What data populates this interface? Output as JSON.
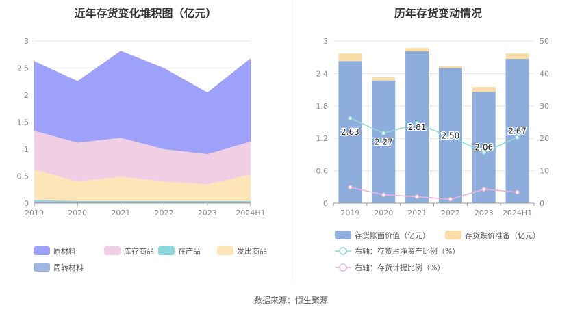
{
  "source": "数据来源：恒生聚源",
  "colors": {
    "raw": "#9ea1f9",
    "wip_store": "#f0cee3",
    "in_prod": "#8cd7db",
    "shipped": "#fde5b8",
    "turnover": "#9eb6e0",
    "bar_book": "#8daddd",
    "bar_prov": "#fcdca7",
    "line_ratio": "#8ed8d8",
    "line_prov": "#e8b4d8"
  },
  "chart_data": [
    {
      "type": "area",
      "stacked": true,
      "title": "近年存货变化堆积图（亿元）",
      "categories": [
        "2019",
        "2020",
        "2021",
        "2022",
        "2023",
        "2024H1"
      ],
      "ylim": [
        0,
        3
      ],
      "yticks": [
        "0",
        "0.5",
        "1",
        "1.5",
        "2",
        "2.5",
        "3"
      ],
      "grid": true,
      "legend_position": "bottom",
      "series": [
        {
          "name": "周转材料",
          "legend_order": 4,
          "color": "#9eb6e0",
          "values": [
            0.03,
            0.02,
            0.02,
            0.02,
            0.02,
            0.02
          ]
        },
        {
          "name": "在产品",
          "legend_order": 2,
          "color": "#8cd7db",
          "values": [
            0.03,
            0.02,
            0.02,
            0.02,
            0.02,
            0.02
          ]
        },
        {
          "name": "发出商品",
          "legend_order": 3,
          "color": "#fde5b8",
          "values": [
            0.56,
            0.36,
            0.45,
            0.36,
            0.31,
            0.49
          ]
        },
        {
          "name": "库存商品",
          "legend_order": 1,
          "color": "#f0cee3",
          "values": [
            0.72,
            0.72,
            0.72,
            0.6,
            0.56,
            0.61
          ]
        },
        {
          "name": "原材料",
          "legend_order": 0,
          "color": "#9ea1f9",
          "values": [
            1.29,
            1.14,
            1.61,
            1.5,
            1.14,
            1.54
          ]
        }
      ]
    },
    {
      "type": "bar",
      "stacked": true,
      "title": "历年存货变动情况",
      "categories": [
        "2019",
        "2020",
        "2021",
        "2022",
        "2023",
        "2024H1"
      ],
      "ylim": [
        0,
        3
      ],
      "yticks": [
        "0",
        "0.6",
        "1.2",
        "1.8",
        "2.4",
        "3"
      ],
      "y2lim": [
        0,
        50
      ],
      "y2ticks": [
        "0",
        "10",
        "20",
        "30",
        "40",
        "50"
      ],
      "grid": true,
      "legend_position": "bottom",
      "series": [
        {
          "name": "存货账面价值（亿元）",
          "kind": "bar",
          "color": "#8daddd",
          "values": [
            2.63,
            2.27,
            2.81,
            2.5,
            2.06,
            2.67
          ],
          "labels": [
            "2.63",
            "2.27",
            "2.81",
            "2.50",
            "2.06",
            "2.67"
          ]
        },
        {
          "name": "存货跌价准备（亿元）",
          "kind": "bar",
          "color": "#fcdca7",
          "values": [
            0.14,
            0.06,
            0.06,
            0.04,
            0.09,
            0.1
          ]
        },
        {
          "name": "右轴：存货占净资产比例（%）",
          "kind": "line",
          "axis": "right",
          "color": "#8ed8d8",
          "values": [
            26.2,
            21.6,
            24.5,
            20.5,
            15.7,
            20.3
          ]
        },
        {
          "name": "右轴：存货计提比例（%）",
          "kind": "line",
          "axis": "right",
          "color": "#e8b4d8",
          "values": [
            4.9,
            2.6,
            2.0,
            1.2,
            4.3,
            3.4
          ]
        }
      ]
    }
  ]
}
